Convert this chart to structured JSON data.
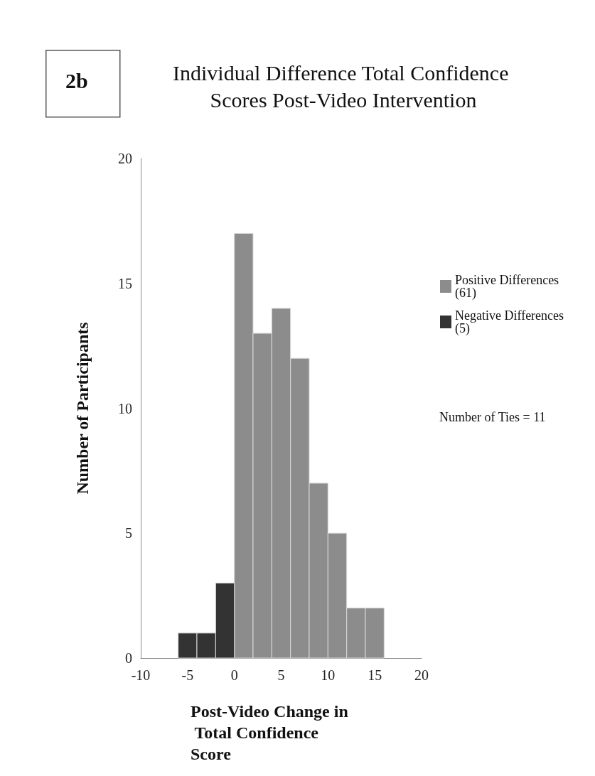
{
  "chart_data": {
    "type": "histogram",
    "title": "Individual Difference Total Confidence Scores Post-Video Intervention",
    "xlabel": "Post-Video Change in Total Confidence Score",
    "ylabel": "Number of Participants",
    "bins": [
      -6,
      -4,
      -2,
      0,
      2,
      4,
      6,
      8,
      10,
      12,
      14,
      16
    ],
    "series": [
      {
        "name": "Positive Differences (61)",
        "color": "#8c8c8c",
        "values": [
          null,
          null,
          null,
          17,
          13,
          14,
          12,
          7,
          5,
          2,
          2
        ]
      },
      {
        "name": "Negative Differences (5)",
        "color": "#333333",
        "values": [
          1,
          1,
          3,
          null,
          null,
          null,
          null,
          null,
          null,
          null,
          null
        ]
      }
    ],
    "xlim": [
      -10,
      20
    ],
    "xticks": [
      -10,
      -5,
      0,
      5,
      10,
      15,
      20
    ],
    "ylim": [
      0,
      20
    ],
    "yticks": [
      0,
      5,
      10,
      15,
      20
    ],
    "grid": false,
    "legend": "right",
    "annotations": [
      "2b",
      "Number of Ties = 11"
    ]
  }
}
